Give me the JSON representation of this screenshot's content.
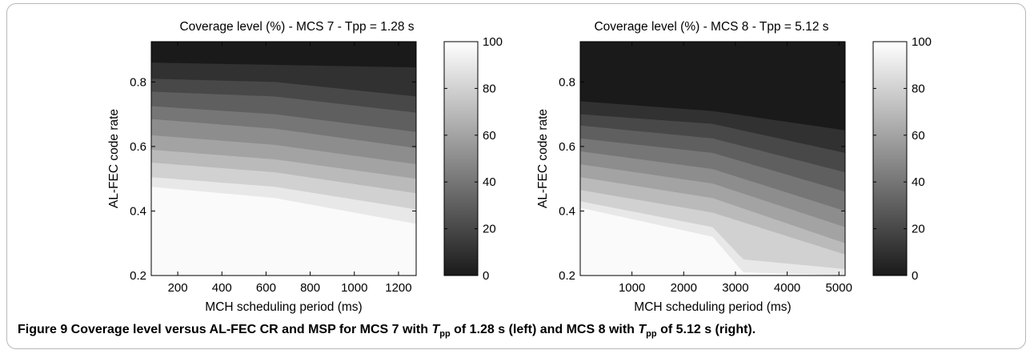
{
  "chart_data": [
    {
      "type": "heatmap",
      "title": "Coverage level (%) - MCS 7 - Tpp = 1.28 s",
      "xlabel": "MCH scheduling period (ms)",
      "ylabel": "AL-FEC code rate",
      "xlim": [
        80,
        1280
      ],
      "ylim": [
        0.2,
        0.925
      ],
      "xticks": [
        "200",
        "400",
        "600",
        "800",
        "1000",
        "1200"
      ],
      "xtick_values": [
        200,
        400,
        600,
        800,
        1000,
        1200
      ],
      "yticks": [
        "0.2",
        "0.4",
        "0.6",
        "0.8"
      ],
      "ytick_values": [
        0.2,
        0.4,
        0.6,
        0.8
      ],
      "colorbar": {
        "min": 0,
        "max": 100,
        "ticks": [
          "0",
          "20",
          "40",
          "60",
          "80",
          "100"
        ],
        "colormap": "gray"
      },
      "contours": [
        {
          "level": 0,
          "x": [
            80,
            1280
          ],
          "y": [
            0.925,
            0.925
          ]
        },
        {
          "level": 10,
          "x": [
            80,
            1280
          ],
          "y": [
            0.86,
            0.845
          ]
        },
        {
          "level": 20,
          "x": [
            80,
            640,
            1280
          ],
          "y": [
            0.81,
            0.8,
            0.755
          ]
        },
        {
          "level": 30,
          "x": [
            80,
            640,
            1280
          ],
          "y": [
            0.77,
            0.755,
            0.705
          ]
        },
        {
          "level": 40,
          "x": [
            80,
            640,
            1280
          ],
          "y": [
            0.725,
            0.7,
            0.645
          ]
        },
        {
          "level": 50,
          "x": [
            80,
            640,
            1280
          ],
          "y": [
            0.685,
            0.655,
            0.595
          ]
        },
        {
          "level": 60,
          "x": [
            80,
            640,
            1280
          ],
          "y": [
            0.635,
            0.605,
            0.545
          ]
        },
        {
          "level": 70,
          "x": [
            80,
            640,
            1280
          ],
          "y": [
            0.59,
            0.56,
            0.5
          ]
        },
        {
          "level": 80,
          "x": [
            80,
            640,
            1280
          ],
          "y": [
            0.55,
            0.52,
            0.455
          ]
        },
        {
          "level": 90,
          "x": [
            80,
            640,
            1280
          ],
          "y": [
            0.505,
            0.475,
            0.405
          ]
        },
        {
          "level": 98,
          "x": [
            80,
            640,
            1280
          ],
          "y": [
            0.475,
            0.44,
            0.36
          ]
        }
      ]
    },
    {
      "type": "heatmap",
      "title": "Coverage level (%) - MCS 8 - Tpp = 5.12 s",
      "xlabel": "MCH scheduling period (ms)",
      "ylabel": "AL-FEC code rate",
      "xlim": [
        0,
        5120
      ],
      "ylim": [
        0.2,
        0.925
      ],
      "xticks": [
        "1000",
        "2000",
        "3000",
        "4000",
        "5000"
      ],
      "xtick_values": [
        1000,
        2000,
        3000,
        4000,
        5000
      ],
      "yticks": [
        "0.2",
        "0.4",
        "0.6",
        "0.8"
      ],
      "ytick_values": [
        0.2,
        0.4,
        0.6,
        0.8
      ],
      "colorbar": {
        "min": 0,
        "max": 100,
        "ticks": [
          "0",
          "20",
          "40",
          "60",
          "80",
          "100"
        ],
        "colormap": "gray"
      },
      "contours": [
        {
          "level": 0,
          "x": [
            0,
            5120
          ],
          "y": [
            0.925,
            0.925
          ]
        },
        {
          "level": 10,
          "x": [
            0,
            2560,
            5120
          ],
          "y": [
            0.74,
            0.71,
            0.65
          ]
        },
        {
          "level": 20,
          "x": [
            0,
            2560,
            5120
          ],
          "y": [
            0.7,
            0.67,
            0.58
          ]
        },
        {
          "level": 30,
          "x": [
            0,
            2560,
            5120
          ],
          "y": [
            0.665,
            0.625,
            0.52
          ]
        },
        {
          "level": 40,
          "x": [
            0,
            2560,
            5120
          ],
          "y": [
            0.625,
            0.58,
            0.46
          ]
        },
        {
          "level": 50,
          "x": [
            0,
            2560,
            5120
          ],
          "y": [
            0.585,
            0.53,
            0.4
          ]
        },
        {
          "level": 60,
          "x": [
            0,
            2560,
            5120
          ],
          "y": [
            0.545,
            0.485,
            0.35
          ]
        },
        {
          "level": 70,
          "x": [
            0,
            2560,
            5120
          ],
          "y": [
            0.505,
            0.44,
            0.3
          ]
        },
        {
          "level": 80,
          "x": [
            0,
            2560,
            5120
          ],
          "y": [
            0.465,
            0.395,
            0.265
          ]
        },
        {
          "level": 90,
          "x": [
            0,
            2560,
            3150,
            5120
          ],
          "y": [
            0.43,
            0.35,
            0.25,
            0.22
          ]
        },
        {
          "level": 98,
          "x": [
            0,
            2560,
            3150,
            5120
          ],
          "y": [
            0.41,
            0.32,
            0.21,
            0.2
          ]
        }
      ]
    }
  ],
  "caption": {
    "prefix": "Figure 9 Coverage level versus AL-FEC CR and MSP for MCS 7 with ",
    "tpp_t": "T",
    "tpp_sub": "pp",
    "middle": " of 1.28 s (left) and MCS 8 with ",
    "suffix": " of 5.12 s (right)."
  }
}
